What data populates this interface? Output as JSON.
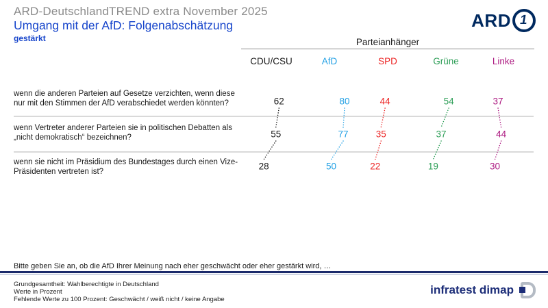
{
  "header": {
    "kicker": "ARD-DeutschlandTREND extra November 2025",
    "title": "Umgang mit der AfD: Folgenabschätzung",
    "subtitle": "gestärkt",
    "ard_logo_text": "ARD",
    "ard_logo_one": "1"
  },
  "chart_data": {
    "type": "table",
    "group_header": "Parteianhänger",
    "columns": [
      {
        "label": "CDU/CSU",
        "color": "#1a1a1a"
      },
      {
        "label": "AfD",
        "color": "#1f9fe4"
      },
      {
        "label": "SPD",
        "color": "#ec2727"
      },
      {
        "label": "Grüne",
        "color": "#2d9e57"
      },
      {
        "label": "Linke",
        "color": "#ac1880"
      }
    ],
    "rows": [
      {
        "question": "wenn die anderen Parteien auf Gesetze verzichten, wenn diese nur mit den Stimmen der AfD verabschiedet werden könnten?",
        "values": [
          62,
          80,
          44,
          54,
          37
        ]
      },
      {
        "question": "wenn Vertreter anderer Parteien sie in politischen Debatten als „nicht demokratisch“ bezeichnen?",
        "values": [
          55,
          77,
          35,
          37,
          44
        ]
      },
      {
        "question": "wenn sie nicht im Präsidium des Bundestages durch einen Vize-Präsidenten vertreten ist?",
        "values": [
          28,
          50,
          22,
          19,
          30
        ]
      }
    ],
    "unit": "Prozent"
  },
  "footnote": "Bitte geben Sie an, ob die AfD Ihrer Meinung nach eher geschwächt oder eher gestärkt wird, …",
  "footer": {
    "lines": [
      "Grundgesamtheit: Wahlberechtigte in Deutschland",
      "Werte in Prozent",
      "Fehlende Werte zu 100 Prozent: Geschwächt / weiß nicht / keine Angabe"
    ],
    "brand": "infratest dimap"
  }
}
